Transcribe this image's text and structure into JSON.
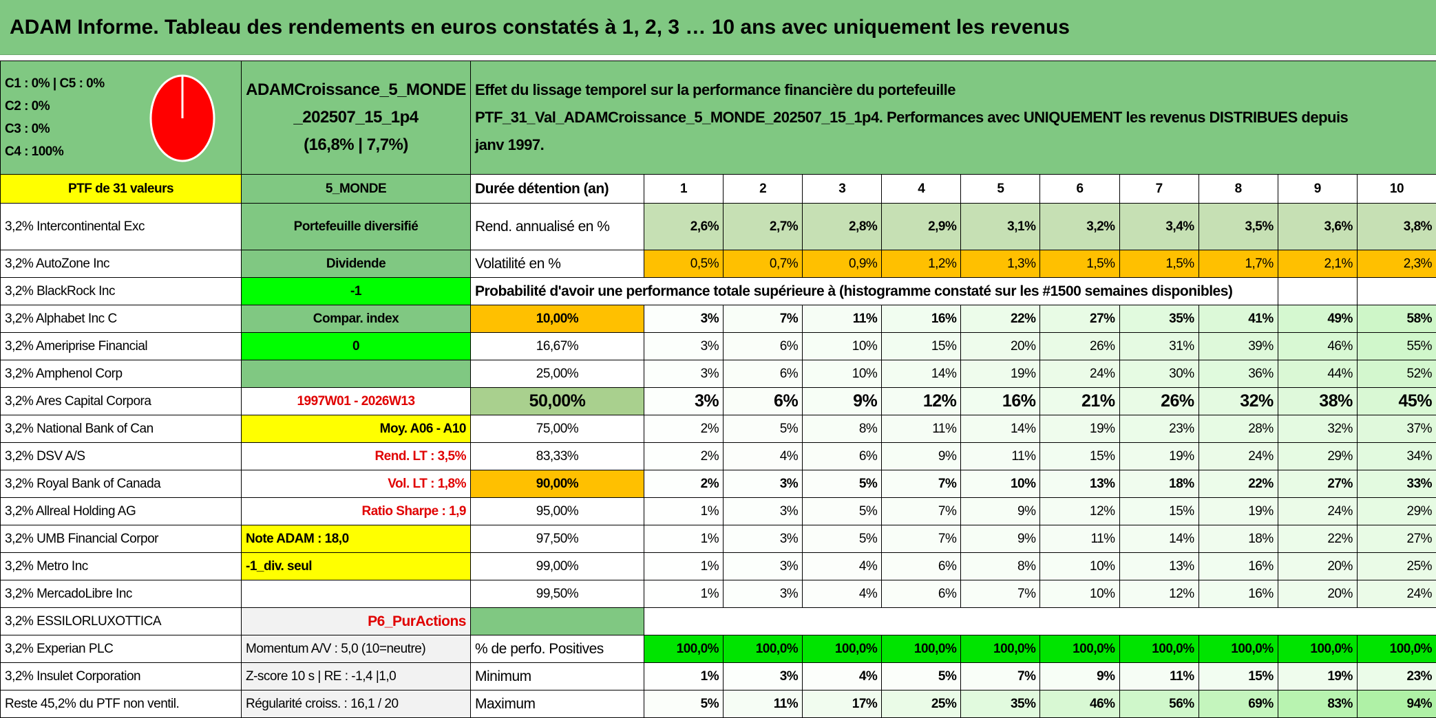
{
  "title": "ADAM Informe. Tableau des rendements en euros constatés à 1, 2, 3 … 10 ans avec uniquement les revenus",
  "classes": [
    "C1 : 0% | C5 : 0%",
    "C2 : 0%",
    "C3 : 0%",
    "C4 : 100%"
  ],
  "pie": {
    "colors": {
      "C4": "#ff0000"
    },
    "values": {
      "C1": 0,
      "C2": 0,
      "C3": 0,
      "C4": 100,
      "C5": 0
    }
  },
  "portfolio_name": [
    "ADAMCroissance_5_MONDE",
    "_202507_15_1p4",
    "(16,8% | 7,7%)"
  ],
  "description": [
    "Effet du lissage temporel sur la performance financière du portefeuille",
    "PTF_31_Val_ADAMCroissance_5_MONDE_202507_15_1p4. Performances avec UNIQUEMENT les revenus DISTRIBUES depuis",
    "janv 1997."
  ],
  "ptf_count": "PTF de 31 valeurs",
  "zone": "5_MONDE",
  "duration_label": "Durée détention (an)",
  "years": [
    "1",
    "2",
    "3",
    "4",
    "5",
    "6",
    "7",
    "8",
    "9",
    "10"
  ],
  "rend": {
    "label": "Rend. annualisé en %",
    "values": [
      "2,6%",
      "2,7%",
      "2,8%",
      "2,9%",
      "3,1%",
      "3,2%",
      "3,4%",
      "3,5%",
      "3,6%",
      "3,8%"
    ]
  },
  "vol": {
    "label": "Volatilité en %",
    "values": [
      "0,5%",
      "0,7%",
      "0,9%",
      "1,2%",
      "1,3%",
      "1,5%",
      "1,5%",
      "1,7%",
      "2,1%",
      "2,3%"
    ]
  },
  "prob_header": "Probabilité d'avoir une performance totale supérieure à (histogramme constaté sur les #1500 semaines disponibles)",
  "holdings": [
    "3,2% Intercontinental Exc",
    "3,2% AutoZone Inc",
    "3,2% BlackRock Inc",
    "3,2% Alphabet Inc C",
    "3,2% Ameriprise Financial",
    "3,2% Amphenol Corp",
    "3,2% Ares Capital Corpora",
    "3,2% National Bank of Can",
    "3,2% DSV A/S",
    "3,2% Royal Bank of Canada",
    "3,2% Allreal Holding AG",
    "3,2% UMB Financial Corpor",
    "3,2% Metro Inc",
    "3,2% MercadoLibre Inc",
    "3,2% ESSILORLUXOTTICA",
    "3,2% Experian PLC",
    "3,2% Insulet Corporation",
    "Reste 45,2% du PTF non ventil."
  ],
  "info": [
    "Portefeuille diversifié",
    "Dividende",
    "-1",
    "Compar. index",
    "0",
    "",
    "1997W01 - 2026W13",
    "Moy. A06 - A10",
    "Rend. LT : 3,5%",
    "Vol. LT : 1,8%",
    "Ratio Sharpe : 1,9",
    "Note ADAM : 18,0",
    "-1_div. seul",
    "",
    "P6_PurActions",
    "Momentum A/V : 5,0 (10=neutre)",
    "Z-score 10 s | RE : -1,4 |1,0",
    "Régularité croiss. : 16,1 / 20"
  ],
  "prob_rows": [
    {
      "threshold": "10,00%",
      "values": [
        "3%",
        "7%",
        "11%",
        "16%",
        "22%",
        "27%",
        "35%",
        "41%",
        "49%",
        "58%"
      ]
    },
    {
      "threshold": "16,67%",
      "values": [
        "3%",
        "6%",
        "10%",
        "15%",
        "20%",
        "26%",
        "31%",
        "39%",
        "46%",
        "55%"
      ]
    },
    {
      "threshold": "25,00%",
      "values": [
        "3%",
        "6%",
        "10%",
        "14%",
        "19%",
        "24%",
        "30%",
        "36%",
        "44%",
        "52%"
      ]
    },
    {
      "threshold": "50,00%",
      "values": [
        "3%",
        "6%",
        "9%",
        "12%",
        "16%",
        "21%",
        "26%",
        "32%",
        "38%",
        "45%"
      ]
    },
    {
      "threshold": "75,00%",
      "values": [
        "2%",
        "5%",
        "8%",
        "11%",
        "14%",
        "19%",
        "23%",
        "28%",
        "32%",
        "37%"
      ]
    },
    {
      "threshold": "83,33%",
      "values": [
        "2%",
        "4%",
        "6%",
        "9%",
        "11%",
        "15%",
        "19%",
        "24%",
        "29%",
        "34%"
      ]
    },
    {
      "threshold": "90,00%",
      "values": [
        "2%",
        "3%",
        "5%",
        "7%",
        "10%",
        "13%",
        "18%",
        "22%",
        "27%",
        "33%"
      ]
    },
    {
      "threshold": "95,00%",
      "values": [
        "1%",
        "3%",
        "5%",
        "7%",
        "9%",
        "12%",
        "15%",
        "19%",
        "24%",
        "29%"
      ]
    },
    {
      "threshold": "97,50%",
      "values": [
        "1%",
        "3%",
        "5%",
        "7%",
        "9%",
        "11%",
        "14%",
        "18%",
        "22%",
        "27%"
      ]
    },
    {
      "threshold": "99,00%",
      "values": [
        "1%",
        "3%",
        "4%",
        "6%",
        "8%",
        "10%",
        "13%",
        "16%",
        "20%",
        "25%"
      ]
    },
    {
      "threshold": "99,50%",
      "values": [
        "1%",
        "3%",
        "4%",
        "6%",
        "7%",
        "10%",
        "12%",
        "16%",
        "20%",
        "24%"
      ]
    }
  ],
  "positives": {
    "label": "% de perfo. Positives",
    "values": [
      "100,0%",
      "100,0%",
      "100,0%",
      "100,0%",
      "100,0%",
      "100,0%",
      "100,0%",
      "100,0%",
      "100,0%",
      "100,0%"
    ]
  },
  "minimum": {
    "label": "Minimum",
    "values": [
      "1%",
      "3%",
      "4%",
      "5%",
      "7%",
      "9%",
      "11%",
      "15%",
      "19%",
      "23%"
    ]
  },
  "maximum": {
    "label": "Maximum",
    "values": [
      "5%",
      "11%",
      "17%",
      "25%",
      "35%",
      "46%",
      "56%",
      "69%",
      "83%",
      "94%"
    ]
  }
}
